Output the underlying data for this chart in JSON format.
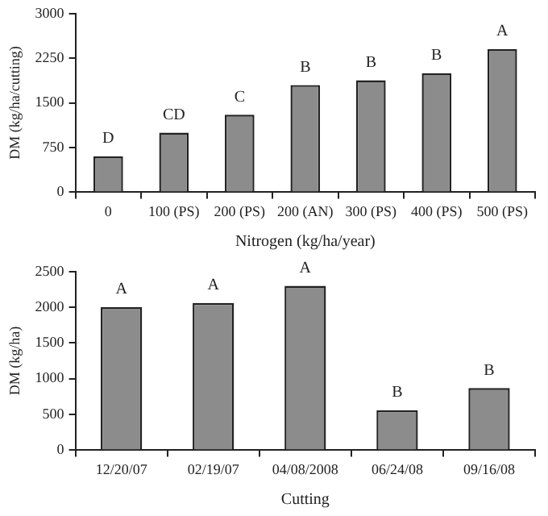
{
  "chart_data": [
    {
      "type": "bar",
      "xlabel": "Nitrogen (kg/ha/year)",
      "ylabel": "DM (kg/ha/cutting)",
      "categories": [
        "0",
        "100 (PS)",
        "200 (PS)",
        "200 (AN)",
        "300 (PS)",
        "400 (PS)",
        "500 (PS)"
      ],
      "values": [
        600,
        1000,
        1300,
        1800,
        1880,
        2000,
        2400
      ],
      "color": "#8c8c8c",
      "ylim": [
        0,
        3000
      ],
      "yticks": [
        0,
        750,
        1500,
        2250,
        3000
      ],
      "grid": false,
      "legend": false,
      "annotations": [
        {
          "text": "D",
          "x": "0",
          "y": 600
        },
        {
          "text": "CD",
          "x": "100 (PS)",
          "y": 1000
        },
        {
          "text": "C",
          "x": "200 (PS)",
          "y": 1300
        },
        {
          "text": "B",
          "x": "200 (AN)",
          "y": 1800
        },
        {
          "text": "B",
          "x": "300 (PS)",
          "y": 1880
        },
        {
          "text": "B",
          "x": "400 (PS)",
          "y": 2000
        },
        {
          "text": "A",
          "x": "500 (PS)",
          "y": 2400
        }
      ]
    },
    {
      "type": "bar",
      "xlabel": "Cutting",
      "ylabel": "DM (kg/ha)",
      "categories": [
        "12/20/07",
        "02/19/07",
        "04/08/2008",
        "06/24/08",
        "09/16/08"
      ],
      "values": [
        2000,
        2060,
        2300,
        560,
        870
      ],
      "color": "#8c8c8c",
      "ylim": [
        0,
        2500
      ],
      "yticks": [
        0,
        500,
        1000,
        1500,
        2000,
        2500
      ],
      "grid": false,
      "legend": false,
      "annotations": [
        {
          "text": "A",
          "x": "12/20/07",
          "y": 2000
        },
        {
          "text": "A",
          "x": "02/19/07",
          "y": 2060
        },
        {
          "text": "A",
          "x": "04/08/2008",
          "y": 2300
        },
        {
          "text": "B",
          "x": "06/24/08",
          "y": 560
        },
        {
          "text": "B",
          "x": "09/16/08",
          "y": 870
        }
      ]
    }
  ]
}
